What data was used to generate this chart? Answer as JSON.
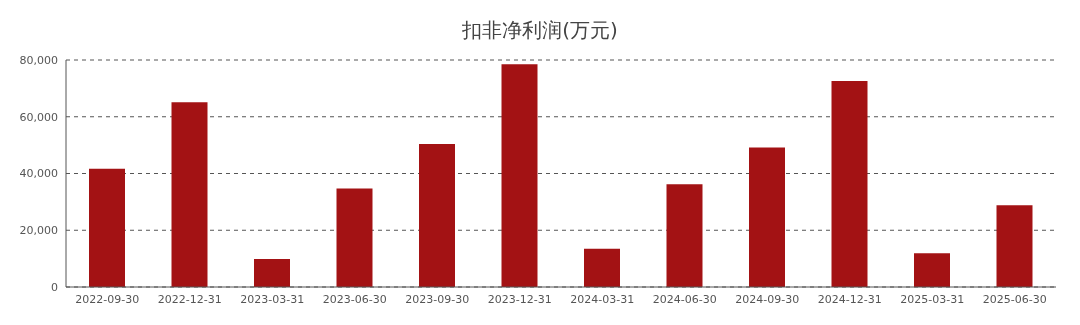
{
  "chart_data": {
    "type": "bar",
    "title": "扣非净利润(万元)",
    "categories": [
      "2022-09-30",
      "2022-12-31",
      "2023-03-31",
      "2023-06-30",
      "2023-09-30",
      "2023-12-31",
      "2024-03-31",
      "2024-06-30",
      "2024-09-30",
      "2024-12-31",
      "2025-03-31",
      "2025-06-30"
    ],
    "values": [
      41700,
      65100,
      9900,
      34700,
      50400,
      78500,
      13500,
      36200,
      49200,
      72600,
      11900,
      28800
    ],
    "color": "#a31214",
    "ylim": [
      0,
      80000
    ],
    "yticks": [
      0,
      {
        "value": 20000,
        "label": "20,000"
      },
      {
        "value": 40000,
        "label": "40,000"
      },
      {
        "value": 60000,
        "label": "60,000"
      },
      {
        "value": 80000,
        "label": "80,000"
      }
    ],
    "grid": "y"
  }
}
